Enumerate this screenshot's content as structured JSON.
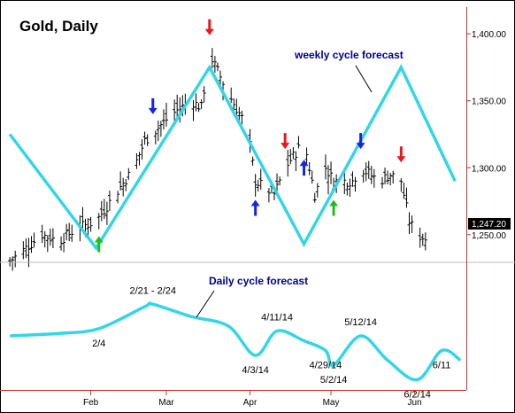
{
  "chart_data": [
    {
      "type": "ohlc",
      "title": "Gold, Daily",
      "ylim": [
        1230,
        1420
      ],
      "y_ticks": [
        "1,400.00",
        "1,350.00",
        "1,300.00",
        "1,250.00"
      ],
      "y_tick_values": [
        1400,
        1350,
        1300,
        1250
      ],
      "x_ticks": [
        "Feb",
        "Mar",
        "Apr",
        "May",
        "Jun"
      ],
      "last_price": 1247.2,
      "last_price_label": "1,247.20",
      "price_series": {
        "x": [
          "Jan 2",
          "Jan 8",
          "Jan 14",
          "Jan 20",
          "Jan 27",
          "Feb 3",
          "Feb 10",
          "Feb 17",
          "Feb 21",
          "Feb 26",
          "Mar 3",
          "Mar 10",
          "Mar 14",
          "Mar 17",
          "Mar 24",
          "Mar 31",
          "Apr 3",
          "Apr 10",
          "Apr 14",
          "Apr 21",
          "Apr 25",
          "Apr 29",
          "May 2",
          "May 9",
          "May 12",
          "May 19",
          "May 23",
          "May 27",
          "May 30",
          "Jun 2",
          "Jun 5"
        ],
        "y": [
          1230,
          1240,
          1250,
          1245,
          1255,
          1260,
          1280,
          1300,
          1320,
          1330,
          1340,
          1350,
          1345,
          1385,
          1355,
          1330,
          1290,
          1280,
          1300,
          1320,
          1280,
          1300,
          1290,
          1290,
          1300,
          1290,
          1295,
          1290,
          1260,
          1250,
          1247
        ]
      },
      "weekly_cycle_forecast": {
        "label": "weekly cycle forecast",
        "x": [
          "Jan 2",
          "Feb 3",
          "Mar 17",
          "Apr 21",
          "May 27",
          "Jun 16"
        ],
        "y": [
          1325,
          1240,
          1375,
          1243,
          1375,
          1290
        ]
      },
      "cycle_arrows": [
        {
          "date": "Feb 4",
          "type": "low",
          "color": "green"
        },
        {
          "date": "Feb 24",
          "type": "high",
          "color": "blue"
        },
        {
          "date": "Mar 17",
          "type": "high",
          "color": "red"
        },
        {
          "date": "Apr 3",
          "type": "low",
          "color": "blue"
        },
        {
          "date": "Apr 14",
          "type": "high",
          "color": "red"
        },
        {
          "date": "Apr 21",
          "type": "low",
          "color": "blue"
        },
        {
          "date": "May 2",
          "type": "low",
          "color": "green"
        },
        {
          "date": "May 12",
          "type": "high",
          "color": "blue"
        },
        {
          "date": "May 27",
          "type": "high",
          "color": "red"
        }
      ]
    },
    {
      "type": "line",
      "title": "Daily cycle forecast",
      "series": [
        {
          "name": "Daily cycle forecast",
          "x": [
            "Jan 2",
            "Jan 20",
            "Feb 4",
            "Feb 21",
            "Feb 24",
            "Mar 10",
            "Mar 24",
            "Apr 3",
            "Apr 11",
            "Apr 21",
            "Apr 29",
            "May 2",
            "May 12",
            "May 22",
            "Jun 2",
            "Jun 11",
            "Jun 18"
          ],
          "y": [
            0.2,
            0.25,
            0.35,
            0.8,
            0.85,
            0.6,
            0.4,
            -0.2,
            0.3,
            0.1,
            -0.1,
            -0.4,
            0.2,
            -0.3,
            -0.7,
            -0.1,
            -0.3
          ]
        }
      ],
      "annotations": [
        {
          "label": "2/4",
          "date": "Feb 4"
        },
        {
          "label": "2/21 - 2/24",
          "date": "Feb 24"
        },
        {
          "label": "4/3/14",
          "date": "Apr 3"
        },
        {
          "label": "4/11/14",
          "date": "Apr 11"
        },
        {
          "label": "4/29/14",
          "date": "Apr 29"
        },
        {
          "label": "5/2/14",
          "date": "May 2"
        },
        {
          "label": "5/12/14",
          "date": "May 12"
        },
        {
          "label": "6/2/14",
          "date": "Jun 2"
        },
        {
          "label": "6/11",
          "date": "Jun 11"
        }
      ]
    }
  ],
  "colors": {
    "cycle_line": "#33d6e6",
    "axis": "#c8312d",
    "text": "#000000",
    "label_blue": "#00008b",
    "arrow_red": "#e8191c",
    "arrow_blue": "#1624e3",
    "arrow_green": "#22bb22",
    "price_box_bg": "#000000",
    "price_box_text": "#ffffff"
  }
}
